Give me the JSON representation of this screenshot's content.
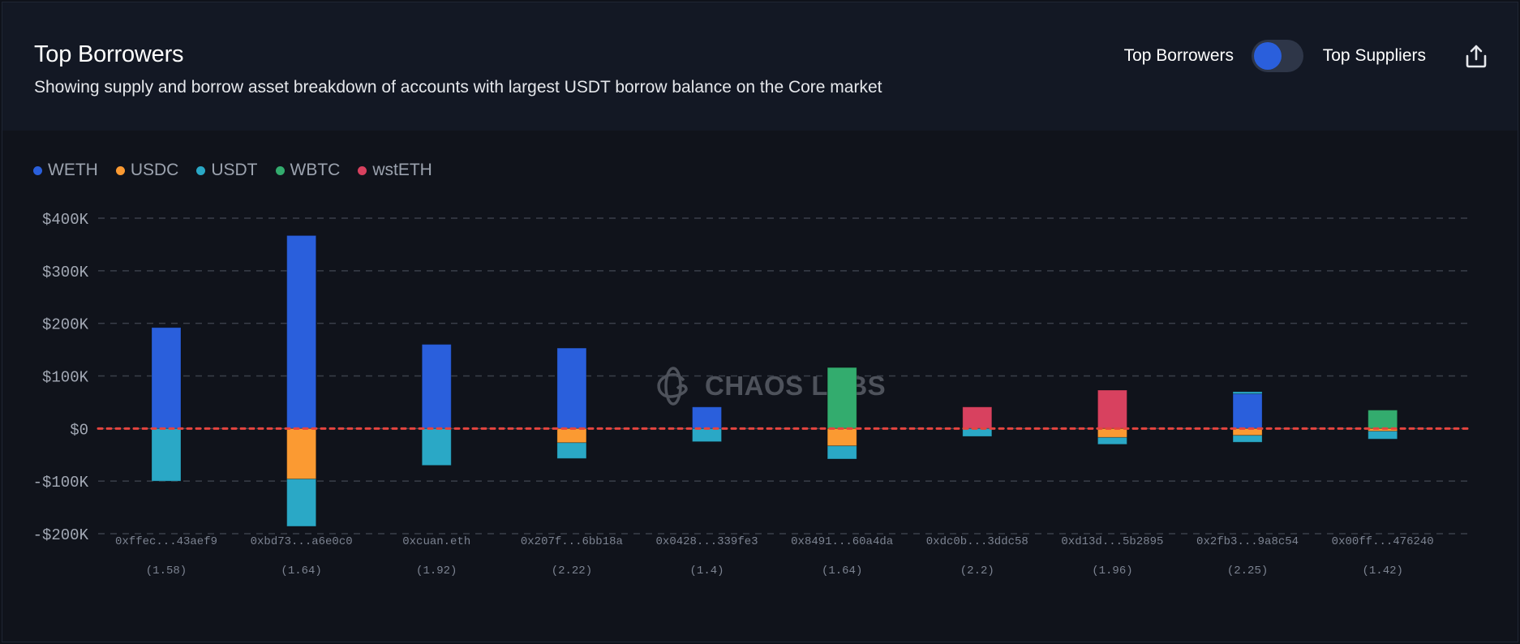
{
  "header": {
    "title": "Top Borrowers",
    "subtitle": "Showing supply and borrow asset breakdown of accounts with largest USDT borrow balance on the Core market",
    "toggle_left_label": "Top Borrowers",
    "toggle_right_label": "Top Suppliers",
    "toggle_state": "Top Borrowers",
    "share_icon": "share-icon"
  },
  "watermark": {
    "text": "CHAOS LABS",
    "icon": "chaos-labs-logo-icon"
  },
  "colors": {
    "WETH": "#2a5fdc",
    "USDC": "#fb9a32",
    "USDT": "#2aa8c6",
    "WBTC": "#33ac6e",
    "wstETH": "#d8415f",
    "zero_line": "#e5443f",
    "accent": "#2a5fdc"
  },
  "chart_data": {
    "type": "bar",
    "stacked": true,
    "title": "Top Borrowers",
    "xlabel": "",
    "ylabel": "",
    "ylim": [
      -200000,
      400000
    ],
    "yticks": [
      400000,
      300000,
      200000,
      100000,
      0,
      -100000,
      -200000
    ],
    "ytick_labels": [
      "$400K",
      "$300K",
      "$200K",
      "$100K",
      "$0",
      "-$100K",
      "-$200K"
    ],
    "grid": true,
    "legend_position": "top-left",
    "legend": [
      "WETH",
      "USDC",
      "USDT",
      "WBTC",
      "wstETH"
    ],
    "categories": [
      "0xffec...43aef9",
      "0xbd73...a6e0c0",
      "0xcuan.eth",
      "0x207f...6bb18a",
      "0x0428...339fe3",
      "0x8491...60a4da",
      "0xdc0b...3ddc58",
      "0xd13d...5b2895",
      "0x2fb3...9a8c54",
      "0x00ff...476240"
    ],
    "health_factors": [
      "(1.58)",
      "(1.64)",
      "(1.92)",
      "(2.22)",
      "(1.4)",
      "(1.64)",
      "(2.2)",
      "(1.96)",
      "(2.25)",
      "(1.42)"
    ],
    "supply_series": [
      {
        "name": "WETH",
        "values": [
          192000,
          367000,
          160000,
          153000,
          41000,
          0,
          0,
          0,
          66000,
          0
        ]
      },
      {
        "name": "WBTC",
        "values": [
          0,
          0,
          0,
          0,
          0,
          116000,
          0,
          0,
          0,
          35000
        ]
      },
      {
        "name": "wstETH",
        "values": [
          0,
          0,
          0,
          0,
          0,
          0,
          41000,
          73000,
          0,
          0
        ]
      },
      {
        "name": "USDT",
        "values": [
          0,
          0,
          0,
          0,
          0,
          0,
          0,
          0,
          4000,
          0
        ]
      }
    ],
    "borrow_series": [
      {
        "name": "USDC",
        "values": [
          0,
          -96000,
          0,
          -27000,
          0,
          -33000,
          0,
          -17000,
          -13000,
          -5000
        ]
      },
      {
        "name": "USDT",
        "values": [
          -100000,
          -90000,
          -70000,
          -30000,
          -25000,
          -25000,
          -15000,
          -13000,
          -13000,
          -15000
        ]
      }
    ],
    "reference_line": {
      "y": 0,
      "style": "dotted",
      "color": "#e5443f"
    }
  }
}
